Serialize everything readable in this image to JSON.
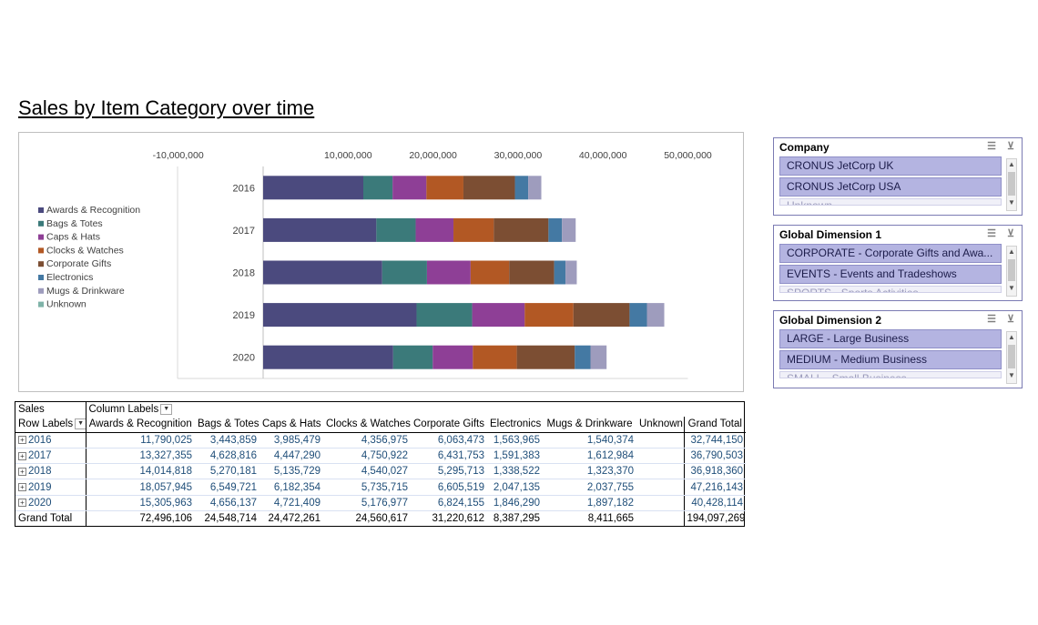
{
  "report": {
    "title": "Sales by Item Category over time"
  },
  "chart_data": {
    "type": "bar",
    "orientation": "horizontal",
    "stacked": true,
    "categories": [
      "2016",
      "2017",
      "2018",
      "2019",
      "2020"
    ],
    "xlim": [
      -10000000,
      50000000
    ],
    "x_ticks": [
      "-10,000,000",
      "10,000,000",
      "20,000,000",
      "30,000,000",
      "40,000,000",
      "50,000,000"
    ],
    "x_tick_values": [
      -10000000,
      10000000,
      20000000,
      30000000,
      40000000,
      50000000
    ],
    "legend_position": "left",
    "series": [
      {
        "name": "Awards & Recognition",
        "color": "#4b4a7e",
        "values": [
          11790025,
          13327355,
          14014818,
          18057945,
          15305963
        ]
      },
      {
        "name": "Bags & Totes",
        "color": "#3b7a7a",
        "values": [
          3443859,
          4628816,
          5270181,
          6549721,
          4656137
        ]
      },
      {
        "name": "Caps & Hats",
        "color": "#8e3f96",
        "values": [
          3985479,
          4447290,
          5135729,
          6182354,
          4721409
        ]
      },
      {
        "name": "Clocks & Watches",
        "color": "#b25824",
        "values": [
          4356975,
          4750922,
          4540027,
          5735715,
          5176977
        ]
      },
      {
        "name": "Corporate Gifts",
        "color": "#7c4e33",
        "values": [
          6063473,
          6431753,
          5295713,
          6605519,
          6824155
        ]
      },
      {
        "name": "Electronics",
        "color": "#4479a3",
        "values": [
          1563965,
          1591383,
          1338522,
          2047135,
          1846290
        ]
      },
      {
        "name": "Mugs & Drinkware",
        "color": "#9e9cbd",
        "values": [
          1540374,
          1612984,
          1323370,
          2037755,
          1897182
        ]
      },
      {
        "name": "Unknown",
        "color": "#7fb3a8",
        "values": [
          0,
          0,
          0,
          0,
          0
        ]
      }
    ]
  },
  "pivot": {
    "values_field": "Sales",
    "col_labels": "Column Labels",
    "row_labels": "Row Labels",
    "columns": [
      "Awards & Recognition",
      "Bags & Totes",
      "Caps & Hats",
      "Clocks & Watches",
      "Corporate Gifts",
      "Electronics",
      "Mugs & Drinkware",
      "Unknown",
      "Grand Total"
    ],
    "rows": [
      {
        "label": "2016",
        "cells": [
          "11,790,025",
          "3,443,859",
          "3,985,479",
          "4,356,975",
          "6,063,473",
          "1,563,965",
          "1,540,374",
          "",
          "32,744,150"
        ]
      },
      {
        "label": "2017",
        "cells": [
          "13,327,355",
          "4,628,816",
          "4,447,290",
          "4,750,922",
          "6,431,753",
          "1,591,383",
          "1,612,984",
          "",
          "36,790,503"
        ]
      },
      {
        "label": "2018",
        "cells": [
          "14,014,818",
          "5,270,181",
          "5,135,729",
          "4,540,027",
          "5,295,713",
          "1,338,522",
          "1,323,370",
          "",
          "36,918,360"
        ]
      },
      {
        "label": "2019",
        "cells": [
          "18,057,945",
          "6,549,721",
          "6,182,354",
          "5,735,715",
          "6,605,519",
          "2,047,135",
          "2,037,755",
          "",
          "47,216,143"
        ]
      },
      {
        "label": "2020",
        "cells": [
          "15,305,963",
          "4,656,137",
          "4,721,409",
          "5,176,977",
          "6,824,155",
          "1,846,290",
          "1,897,182",
          "",
          "40,428,114"
        ]
      }
    ],
    "grand_total": {
      "label": "Grand Total",
      "cells": [
        "72,496,106",
        "24,548,714",
        "24,472,261",
        "24,560,617",
        "31,220,612",
        "8,387,295",
        "8,411,665",
        "",
        "194,097,269"
      ]
    }
  },
  "slicers": [
    {
      "title": "Company",
      "items": [
        "CRONUS JetCorp UK",
        "CRONUS JetCorp USA",
        "Unknown"
      ]
    },
    {
      "title": "Global Dimension 1",
      "items": [
        "CORPORATE - Corporate Gifts and Awa...",
        "EVENTS - Events and Tradeshows",
        "SPORTS - Sports Activities"
      ]
    },
    {
      "title": "Global Dimension 2",
      "items": [
        "LARGE - Large Business",
        "MEDIUM - Medium Business",
        "SMALL - Small Business"
      ]
    }
  ]
}
